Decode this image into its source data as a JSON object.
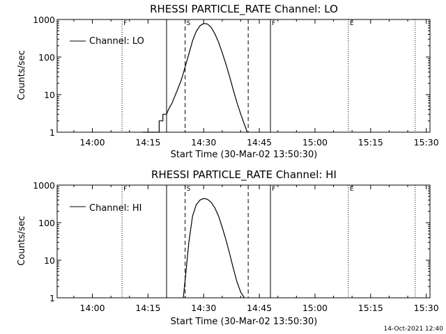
{
  "footer": {
    "timestamp": "14-Oct-2021 12:40"
  },
  "chart_data": [
    {
      "type": "line",
      "title": "RHESSI PARTICLE_RATE Channel: LO",
      "xlabel": "Start Time (30-Mar-02 13:50:30)",
      "ylabel": "Counts/sec",
      "y_scale": "log",
      "ylim": [
        1,
        1000
      ],
      "xlim": [
        "13:50:30",
        "15:31:00"
      ],
      "x_ticks": [
        "14:00",
        "14:15",
        "14:30",
        "14:45",
        "15:00",
        "15:15",
        "15:30"
      ],
      "y_ticks": [
        "1",
        "10",
        "100",
        "1000"
      ],
      "legend": {
        "position": "top-left",
        "entries": [
          "Channel: LO"
        ]
      },
      "markers": [
        {
          "label": "F",
          "time": "14:08",
          "style": "dotted"
        },
        {
          "label": "",
          "time": "14:20",
          "style": "solid"
        },
        {
          "label": "S",
          "time": "14:25",
          "style": "dashed"
        },
        {
          "label": "",
          "time": "14:42",
          "style": "dashed"
        },
        {
          "label": "F",
          "time": "14:48",
          "style": "solid"
        },
        {
          "label": "E",
          "time": "15:09",
          "style": "dotted"
        },
        {
          "label": "",
          "time": "15:27",
          "style": "dotted"
        }
      ],
      "series": [
        {
          "name": "Channel: LO",
          "x": [
            "14:13:30",
            "14:18:00",
            "14:18:00",
            "14:19:00",
            "14:19:00",
            "14:20:00",
            "14:20:30",
            "14:21:00",
            "14:21:30",
            "14:22:00",
            "14:23:00",
            "14:24:00",
            "14:25:00",
            "14:26:00",
            "14:27:00",
            "14:28:00",
            "14:29:00",
            "14:30:00",
            "14:31:00",
            "14:32:00",
            "14:33:00",
            "14:34:00",
            "14:35:00",
            "14:36:00",
            "14:37:00",
            "14:38:00",
            "14:39:00",
            "14:40:00",
            "14:41:00",
            "14:41:45"
          ],
          "values": [
            1,
            1,
            2,
            2,
            3,
            3,
            4,
            5,
            6,
            8,
            14,
            25,
            55,
            120,
            270,
            480,
            680,
            780,
            760,
            620,
            420,
            250,
            130,
            65,
            30,
            13,
            6,
            3,
            1.6,
            1
          ]
        }
      ]
    },
    {
      "type": "line",
      "title": "RHESSI PARTICLE_RATE Channel: HI",
      "xlabel": "Start Time (30-Mar-02 13:50:30)",
      "ylabel": "Counts/sec",
      "y_scale": "log",
      "ylim": [
        1,
        1000
      ],
      "xlim": [
        "13:50:30",
        "15:31:00"
      ],
      "x_ticks": [
        "14:00",
        "14:15",
        "14:30",
        "14:45",
        "15:00",
        "15:15",
        "15:30"
      ],
      "y_ticks": [
        "1",
        "10",
        "100",
        "1000"
      ],
      "legend": {
        "position": "top-left",
        "entries": [
          "Channel: HI"
        ]
      },
      "markers": [
        {
          "label": "F",
          "time": "14:08",
          "style": "dotted"
        },
        {
          "label": "",
          "time": "14:20",
          "style": "solid"
        },
        {
          "label": "S",
          "time": "14:25",
          "style": "dashed"
        },
        {
          "label": "",
          "time": "14:42",
          "style": "dashed"
        },
        {
          "label": "F",
          "time": "14:48",
          "style": "solid"
        },
        {
          "label": "E",
          "time": "15:09",
          "style": "dotted"
        },
        {
          "label": "",
          "time": "15:27",
          "style": "dotted"
        }
      ],
      "series": [
        {
          "name": "Channel: HI",
          "x": [
            "14:24:30",
            "14:25:00",
            "14:26:00",
            "14:27:00",
            "14:28:00",
            "14:29:00",
            "14:30:00",
            "14:31:00",
            "14:32:00",
            "14:33:00",
            "14:34:00",
            "14:35:00",
            "14:36:00",
            "14:37:00",
            "14:38:00",
            "14:39:00",
            "14:40:00",
            "14:41:00"
          ],
          "values": [
            1,
            3,
            30,
            150,
            300,
            400,
            440,
            420,
            350,
            250,
            150,
            75,
            35,
            15,
            6,
            2.6,
            1.4,
            1
          ]
        }
      ]
    }
  ]
}
